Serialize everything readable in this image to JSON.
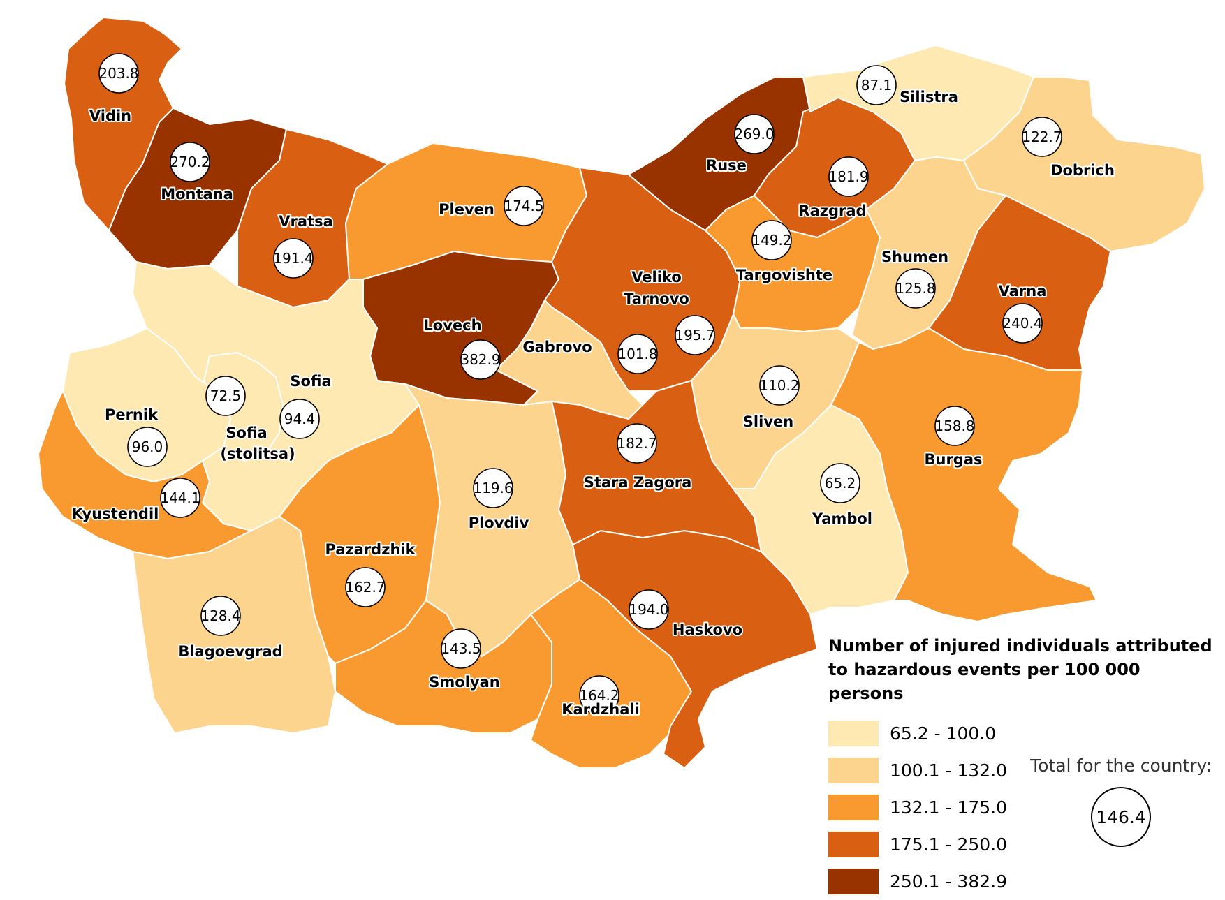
{
  "legend": {
    "title_line1": "Number of injured individuals attributed",
    "title_line2": "to hazardous events per 100 000 persons",
    "classes": [
      {
        "label": "65.2 - 100.0",
        "color": "#fee9b3"
      },
      {
        "label": "100.1 - 132.0",
        "color": "#fdd48e"
      },
      {
        "label": "132.1 - 175.0",
        "color": "#f99a30"
      },
      {
        "label": "175.1 - 250.0",
        "color": "#d95f12"
      },
      {
        "label": "250.1 - 382.9",
        "color": "#983300"
      }
    ]
  },
  "total": {
    "label": "Total for the country:",
    "value": "146.4"
  },
  "provinces": [
    {
      "name": "Vidin",
      "value": "203.8",
      "class": 3
    },
    {
      "name": "Montana",
      "value": "270.2",
      "class": 4
    },
    {
      "name": "Vratsa",
      "value": "191.4",
      "class": 3
    },
    {
      "name": "Pleven",
      "value": "174.5",
      "class": 2
    },
    {
      "name": "Lovech",
      "value": "382.9",
      "class": 4
    },
    {
      "name": "Veliko",
      "name2": "Tarnovo",
      "value": "195.7",
      "class": 3
    },
    {
      "name": "Ruse",
      "value": "269.0",
      "class": 4
    },
    {
      "name": "Razgrad",
      "value": "181.9",
      "class": 3
    },
    {
      "name": "Silistra",
      "value": "87.1",
      "class": 0
    },
    {
      "name": "Dobrich",
      "value": "122.7",
      "class": 1
    },
    {
      "name": "Shumen",
      "value": "125.8",
      "class": 1
    },
    {
      "name": "Targovishte",
      "value": "149.2",
      "class": 2
    },
    {
      "name": "Varna",
      "value": "240.4",
      "class": 3
    },
    {
      "name": "Gabrovo",
      "value": "101.8",
      "class": 1
    },
    {
      "name": "Sofia",
      "value": "94.4",
      "class": 0
    },
    {
      "name": "Sofia",
      "name2": "(stolitsa)",
      "value": "72.5",
      "class": 0
    },
    {
      "name": "Pernik",
      "value": "96.0",
      "class": 0
    },
    {
      "name": "Kyustendil",
      "value": "144.1",
      "class": 2
    },
    {
      "name": "Blagoevgrad",
      "value": "128.4",
      "class": 1
    },
    {
      "name": "Pazardzhik",
      "value": "162.7",
      "class": 2
    },
    {
      "name": "Plovdiv",
      "value": "119.6",
      "class": 1
    },
    {
      "name": "Smolyan",
      "value": "143.5",
      "class": 2
    },
    {
      "name": "Kardzhali",
      "value": "164.2",
      "class": 2
    },
    {
      "name": "Haskovo",
      "value": "194.0",
      "class": 3
    },
    {
      "name": "Stara Zagora",
      "value": "182.7",
      "class": 3
    },
    {
      "name": "Sliven",
      "value": "110.2",
      "class": 1
    },
    {
      "name": "Yambol",
      "value": "65.2",
      "class": 0
    },
    {
      "name": "Burgas",
      "value": "158.8",
      "class": 2
    }
  ]
}
